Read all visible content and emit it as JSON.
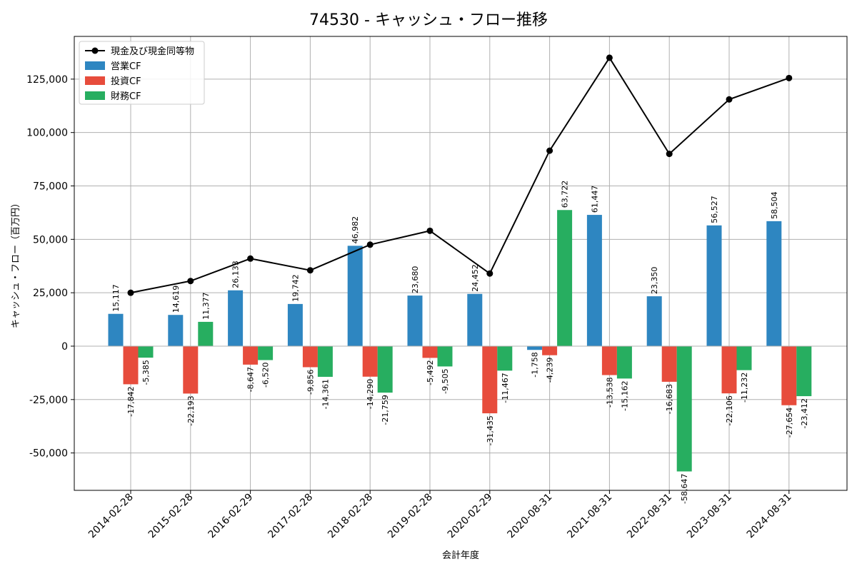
{
  "chart_data": {
    "type": "bar",
    "title": "74530 - キャッシュ・フロー推移",
    "xlabel": "会計年度",
    "ylabel": "キャッシュ・フロー（百万円）",
    "categories": [
      "2014-02-28",
      "2015-02-28",
      "2016-02-29",
      "2017-02-28",
      "2018-02-28",
      "2019-02-28",
      "2020-02-29",
      "2020-08-31",
      "2021-08-31",
      "2022-08-31",
      "2023-08-31",
      "2024-08-31"
    ],
    "ylim": [
      -67500,
      145000
    ],
    "yticks": [
      -50000,
      -25000,
      0,
      25000,
      50000,
      75000,
      100000,
      125000
    ],
    "ytick_labels": [
      "-50,000",
      "-25,000",
      "0",
      "25,000",
      "50,000",
      "75,000",
      "100,000",
      "125,000"
    ],
    "grid": true,
    "legend_position": "top-left",
    "series": [
      {
        "name": "営業CF",
        "kind": "bar",
        "color": "#2e86c1",
        "values": [
          15117,
          14619,
          26133,
          19742,
          46982,
          23680,
          24452,
          -1758,
          61447,
          23350,
          56527,
          58504
        ],
        "labels": [
          "15,117",
          "14,619",
          "26,133",
          "19,742",
          "46,982",
          "23,680",
          "24,452",
          "-1,758",
          "61,447",
          "23,350",
          "56,527",
          "58,504"
        ]
      },
      {
        "name": "投資CF",
        "kind": "bar",
        "color": "#e74c3c",
        "values": [
          -17842,
          -22193,
          -8647,
          -9856,
          -14290,
          -5492,
          -31435,
          -4239,
          -13538,
          -16683,
          -22106,
          -27654
        ],
        "labels": [
          "-17,842",
          "-22,193",
          "-8,647",
          "-9,856",
          "-14,290",
          "-5,492",
          "-31,435",
          "-4,239",
          "-13,538",
          "-16,683",
          "-22,106",
          "-27,654"
        ]
      },
      {
        "name": "財務CF",
        "kind": "bar",
        "color": "#27ae60",
        "values": [
          -5385,
          11377,
          -6520,
          -14361,
          -21759,
          -9505,
          -11467,
          63722,
          -15162,
          -58647,
          -11232,
          -23412
        ],
        "labels": [
          "-5,385",
          "11,377",
          "-6,520",
          "-14,361",
          "-21,759",
          "-9,505",
          "-11,467",
          "63,722",
          "-15,162",
          "-58,647",
          "-11,232",
          "-23,412"
        ]
      },
      {
        "name": "現金及び現金同等物",
        "kind": "line",
        "color": "#000000",
        "values": [
          25000,
          30500,
          41000,
          35500,
          47500,
          54000,
          34000,
          91500,
          135000,
          90000,
          115500,
          125500
        ]
      }
    ]
  }
}
